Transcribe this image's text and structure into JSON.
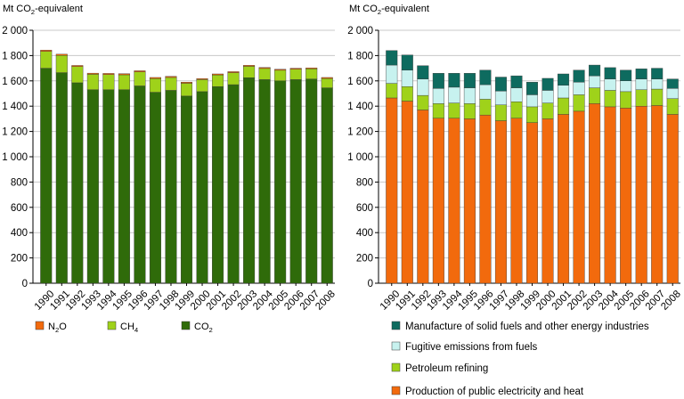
{
  "colors": {
    "co2": "#2f6b0a",
    "ch4": "#9fd21a",
    "n2o": "#f26a0d",
    "public": "#f26a0d",
    "refining": "#9fd21a",
    "fugitive": "#c7f2ef",
    "manufacture": "#0e6b5f",
    "grid": "#c8c8c8",
    "axis": "#000000"
  },
  "chart_data": [
    {
      "type": "bar",
      "stacked": true,
      "ylabel_text": "Mt CO",
      "ylabel_sub": "2",
      "ylabel_tail": "-equivalent",
      "ylim": [
        0,
        2000
      ],
      "yticks": [
        0,
        200,
        400,
        600,
        800,
        1000,
        1200,
        1400,
        1600,
        1800,
        2000
      ],
      "ytick_labels": [
        "0",
        "200",
        "400",
        "600",
        "800",
        "1 000",
        "1 200",
        "1 400",
        "1 600",
        "1 800",
        "2 000"
      ],
      "grid": true,
      "categories": [
        "1990",
        "1991",
        "1992",
        "1993",
        "1994",
        "1995",
        "1996",
        "1997",
        "1998",
        "1999",
        "2000",
        "2001",
        "2002",
        "2003",
        "2004",
        "2005",
        "2006",
        "2007",
        "2008"
      ],
      "series": [
        {
          "name": "CO2",
          "key": "co2",
          "values": [
            1700,
            1665,
            1585,
            1530,
            1530,
            1530,
            1560,
            1510,
            1525,
            1480,
            1515,
            1555,
            1570,
            1625,
            1610,
            1600,
            1610,
            1615,
            1545
          ]
        },
        {
          "name": "CH4",
          "key": "ch4",
          "values": [
            133,
            136,
            128,
            122,
            120,
            118,
            111,
            108,
            102,
            101,
            95,
            92,
            95,
            90,
            88,
            84,
            82,
            80,
            74
          ]
        },
        {
          "name": "N2O",
          "key": "n2o",
          "values": [
            10,
            10,
            9,
            9,
            9,
            9,
            9,
            9,
            9,
            9,
            8,
            8,
            8,
            8,
            8,
            8,
            8,
            8,
            8
          ]
        }
      ],
      "legend": [
        {
          "key": "n2o",
          "text": "N",
          "sub": "2",
          "tail": "O"
        },
        {
          "key": "ch4",
          "text": "CH",
          "sub": "4",
          "tail": ""
        },
        {
          "key": "co2",
          "text": "CO",
          "sub": "2",
          "tail": ""
        }
      ]
    },
    {
      "type": "bar",
      "stacked": true,
      "ylabel_text": "Mt CO",
      "ylabel_sub": "2",
      "ylabel_tail": "-equivalent",
      "ylim": [
        0,
        2000
      ],
      "yticks": [
        0,
        200,
        400,
        600,
        800,
        1000,
        1200,
        1400,
        1600,
        1800,
        2000
      ],
      "ytick_labels": [
        "0",
        "200",
        "400",
        "600",
        "800",
        "1 000",
        "1 200",
        "1 400",
        "1 600",
        "1 800",
        "2 000"
      ],
      "grid": true,
      "categories": [
        "1990",
        "1991",
        "1992",
        "1993",
        "1994",
        "1995",
        "1996",
        "1997",
        "1998",
        "1999",
        "2000",
        "2001",
        "2002",
        "2003",
        "2004",
        "2005",
        "2006",
        "2007",
        "2008"
      ],
      "series": [
        {
          "name": "Production of public electricity and heat",
          "key": "public",
          "values": [
            1465,
            1440,
            1370,
            1305,
            1305,
            1300,
            1330,
            1285,
            1305,
            1270,
            1300,
            1335,
            1360,
            1420,
            1395,
            1385,
            1400,
            1405,
            1335
          ]
        },
        {
          "name": "Petroleum refining",
          "key": "refining",
          "values": [
            115,
            115,
            115,
            115,
            120,
            120,
            125,
            125,
            130,
            125,
            125,
            130,
            130,
            125,
            130,
            130,
            130,
            130,
            125
          ]
        },
        {
          "name": "Fugitive emissions from fuels",
          "key": "fugitive",
          "values": [
            145,
            130,
            130,
            120,
            125,
            125,
            115,
            110,
            110,
            95,
            100,
            100,
            100,
            95,
            90,
            85,
            85,
            80,
            80
          ]
        },
        {
          "name": "Manufacture of solid fuels and other energy industries",
          "key": "manufacture",
          "values": [
            115,
            120,
            105,
            120,
            110,
            115,
            115,
            110,
            95,
            100,
            95,
            90,
            95,
            85,
            90,
            85,
            80,
            85,
            75
          ]
        }
      ],
      "legend": [
        {
          "key": "manufacture",
          "text": "Manufacture of solid fuels and other energy industries"
        },
        {
          "key": "fugitive",
          "text": "Fugitive emissions from fuels"
        },
        {
          "key": "refining",
          "text": "Petroleum refining"
        },
        {
          "key": "public",
          "text": "Production of public electricity and heat"
        }
      ]
    }
  ]
}
